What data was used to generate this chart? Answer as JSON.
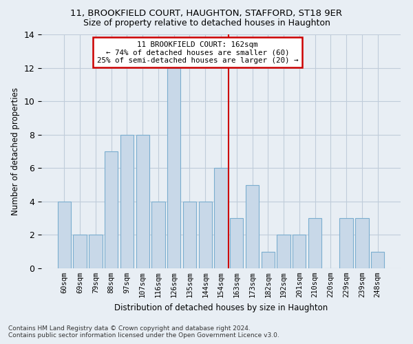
{
  "title1": "11, BROOKFIELD COURT, HAUGHTON, STAFFORD, ST18 9ER",
  "title2": "Size of property relative to detached houses in Haughton",
  "xlabel": "Distribution of detached houses by size in Haughton",
  "ylabel": "Number of detached properties",
  "bar_labels": [
    "60sqm",
    "69sqm",
    "79sqm",
    "88sqm",
    "97sqm",
    "107sqm",
    "116sqm",
    "126sqm",
    "135sqm",
    "144sqm",
    "154sqm",
    "163sqm",
    "173sqm",
    "182sqm",
    "192sqm",
    "201sqm",
    "210sqm",
    "220sqm",
    "229sqm",
    "239sqm",
    "248sqm"
  ],
  "bar_values": [
    4,
    2,
    2,
    7,
    8,
    8,
    4,
    12,
    4,
    4,
    6,
    3,
    5,
    1,
    2,
    2,
    3,
    0,
    3,
    3,
    1
  ],
  "bar_color": "#c8d8e8",
  "bar_edge_color": "#7aadcf",
  "vline_color": "#cc0000",
  "vline_index": 11,
  "annotation_title": "11 BROOKFIELD COURT: 162sqm",
  "annotation_line1": "← 74% of detached houses are smaller (60)",
  "annotation_line2": "25% of semi-detached houses are larger (20) →",
  "annotation_box_color": "#cc0000",
  "ylim": [
    0,
    14
  ],
  "yticks": [
    0,
    2,
    4,
    6,
    8,
    10,
    12,
    14
  ],
  "grid_color": "#c0ccda",
  "bg_color": "#e8eef4",
  "footnote1": "Contains HM Land Registry data © Crown copyright and database right 2024.",
  "footnote2": "Contains public sector information licensed under the Open Government Licence v3.0."
}
